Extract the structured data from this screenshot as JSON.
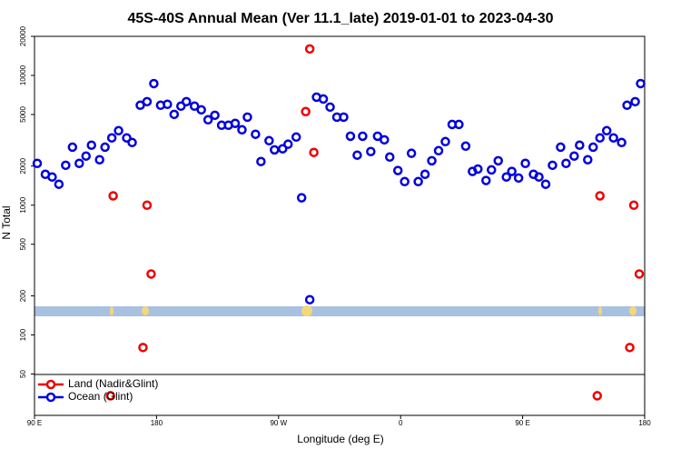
{
  "chart_data": {
    "type": "scatter",
    "title": "45S-40S Annual Mean (Ver 11.1_late)   2019-01-01 to 2023-04-30",
    "x_label": "Longitude (deg E)",
    "y_label": "N Total",
    "log_y": true,
    "legend": "bottom-left",
    "xlim": [
      90,
      540
    ],
    "ylim": [
      24,
      20000
    ],
    "xticks": [
      {
        "value": 90,
        "label": "90 E"
      },
      180,
      {
        "value": 270,
        "label": "90 W"
      },
      {
        "value": 360,
        "label": "0"
      },
      {
        "value": 450,
        "label": "90 E"
      },
      {
        "value": 540,
        "label": "180"
      }
    ],
    "yticks": [
      50,
      100,
      200,
      500,
      1000,
      2000,
      5000,
      10000,
      20000
    ],
    "series": [
      {
        "name": "Land (Nadir&Glint)",
        "color": "#ee0000",
        "x": [
          148,
          173,
          176,
          170,
          146,
          290,
          293,
          296,
          507,
          532,
          536,
          529,
          505
        ],
        "values": [
          1180,
          1000,
          295,
          80,
          34,
          5260,
          16000,
          2550,
          1180,
          1000,
          295,
          80,
          34
        ]
      },
      {
        "name": "Ocean (Glint)",
        "color": "#0000dd",
        "x": [
          92,
          98,
          103,
          108,
          113,
          118,
          123,
          128,
          132,
          138,
          142,
          147,
          152,
          158,
          162,
          168,
          173,
          178,
          183,
          188,
          193,
          198,
          202,
          208,
          213,
          218,
          223,
          228,
          233,
          238,
          243,
          247,
          253,
          257,
          263,
          267,
          273,
          277,
          283,
          287,
          293,
          298,
          303,
          308,
          313,
          318,
          323,
          328,
          332,
          338,
          343,
          348,
          352,
          358,
          363,
          368,
          373,
          378,
          383,
          388,
          393,
          398,
          403,
          408,
          413,
          417,
          423,
          427,
          432,
          438,
          442,
          447,
          452,
          458,
          462,
          467,
          472,
          478,
          482,
          488,
          492,
          498,
          502,
          507,
          512,
          517,
          523,
          527,
          533,
          537
        ],
        "values": [
          2100,
          1730,
          1650,
          1450,
          2030,
          2800,
          2100,
          2390,
          2900,
          2240,
          2800,
          3300,
          3750,
          3300,
          3040,
          5890,
          6280,
          8650,
          5890,
          5990,
          5010,
          5800,
          6280,
          5800,
          5430,
          4550,
          4930,
          4130,
          4130,
          4270,
          3810,
          4770,
          3520,
          2170,
          3140,
          2670,
          2720,
          2950,
          3350,
          1140,
          187,
          6800,
          6580,
          5700,
          4770,
          4770,
          3400,
          2430,
          3400,
          2590,
          3400,
          3190,
          2350,
          1850,
          1520,
          2510,
          1520,
          1730,
          2200,
          2630,
          3090,
          4190,
          4190,
          2850,
          1820,
          1900,
          1550,
          1870,
          2200,
          1650,
          1820,
          1620,
          2100,
          1730,
          1650,
          1450,
          2030,
          2800,
          2100,
          2390,
          2900,
          2240,
          2800,
          3300,
          3750,
          3300,
          3040,
          5890,
          6280,
          8650
        ]
      }
    ]
  }
}
